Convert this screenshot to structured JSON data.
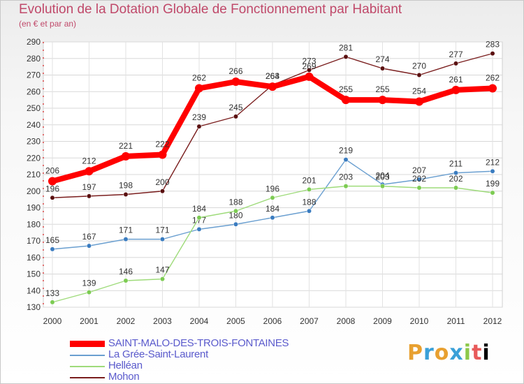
{
  "header": {
    "title": "Evolution de la Dotation Globale de Fonctionnement par Habitant",
    "subtitle": "(en € et par an)"
  },
  "brand": {
    "letters": [
      "P",
      "r",
      "o",
      "x",
      "i",
      "t",
      "i"
    ]
  },
  "chart_data": {
    "type": "line",
    "title": "Evolution de la Dotation Globale de Fonctionnement par Habitant",
    "subtitle": "(en € et par an)",
    "xlabel": "",
    "ylabel": "",
    "ylim": [
      130,
      290
    ],
    "ytick_step": 10,
    "grid": true,
    "legend": "bottom-left",
    "categories": [
      "2000",
      "2001",
      "2002",
      "2003",
      "2004",
      "2005",
      "2006",
      "2007",
      "2008",
      "2009",
      "2010",
      "2011",
      "2012"
    ],
    "series": [
      {
        "name": "Mohon",
        "color": "#7a1e1e",
        "marker": "#5a1010",
        "values": [
          196,
          197,
          198,
          200,
          239,
          245,
          264,
          273,
          281,
          274,
          270,
          277,
          283
        ]
      },
      {
        "name": "La Grée-Saint-Laurent",
        "color": "#6a9fd0",
        "marker": "#3a7cc0",
        "values": [
          165,
          167,
          171,
          171,
          177,
          180,
          184,
          188,
          219,
          204,
          207,
          211,
          212
        ]
      },
      {
        "name": "Helléan",
        "color": "#9edb7a",
        "marker": "#7ccb52",
        "values": [
          133,
          139,
          146,
          147,
          184,
          188,
          196,
          201,
          203,
          203,
          202,
          202,
          199
        ]
      },
      {
        "name": "SAINT-MALO-DES-TROIS-FONTAINES",
        "color": "#ff0000",
        "marker": "#ff0000",
        "values": [
          206,
          212,
          221,
          222,
          262,
          266,
          263,
          269,
          255,
          255,
          254,
          261,
          262
        ]
      }
    ],
    "legend_order": [
      "SAINT-MALO-DES-TROIS-FONTAINES",
      "La Grée-Saint-Laurent",
      "Helléan",
      "Mohon"
    ]
  }
}
